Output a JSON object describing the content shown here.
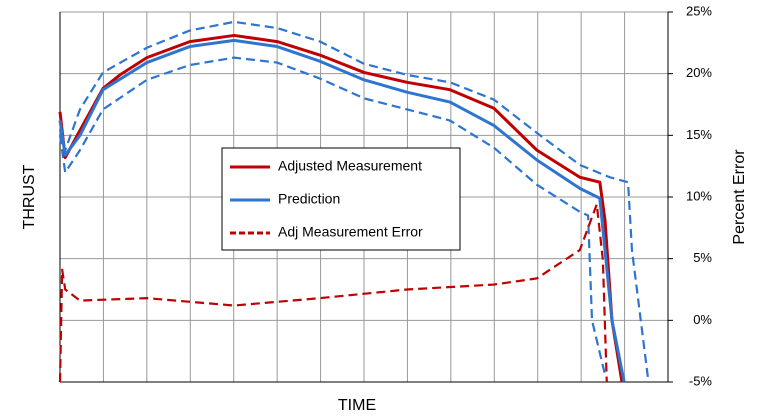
{
  "chart_data": {
    "type": "line",
    "xlabel": "TIME",
    "ylabel": "THRUST",
    "y2label": "Percent Error",
    "xlim": [
      0,
      14
    ],
    "xticks": [
      0,
      1,
      2,
      3,
      4,
      5,
      6,
      7,
      8,
      9,
      10,
      11,
      12,
      13,
      14
    ],
    "ylim": [
      -5,
      25
    ],
    "y2lim": [
      -5,
      25
    ],
    "y2ticks": [
      {
        "value": 25,
        "label": "25%"
      },
      {
        "value": 20,
        "label": "20%"
      },
      {
        "value": 15,
        "label": "15%"
      },
      {
        "value": 10,
        "label": "10%"
      },
      {
        "value": 5,
        "label": "5%"
      },
      {
        "value": 0,
        "label": "0%"
      },
      {
        "value": -5,
        "label": "-5%"
      }
    ],
    "grid": true,
    "legend": "center",
    "series": [
      {
        "name": null,
        "color": "#2e75d0",
        "dash": true,
        "x": [
          0,
          0.12,
          0.46,
          0.99,
          2,
          2.99,
          4.01,
          5,
          5.99,
          7,
          7.99,
          8.98,
          9.99,
          10.98,
          11.97,
          12.66,
          13.08,
          13.17,
          13.54
        ],
        "values": [
          15.4,
          13.8,
          17.1,
          20.1,
          22.1,
          23.5,
          24.2,
          23.7,
          22.6,
          20.8,
          19.9,
          19.3,
          17.9,
          15.2,
          12.6,
          11.6,
          11.2,
          5.7,
          -4.7
        ]
      },
      {
        "name": null,
        "color": "#2e75d0",
        "dash": true,
        "x": [
          0,
          0.12,
          0.46,
          0.99,
          2,
          2.99,
          4.01,
          5,
          5.99,
          7,
          7.99,
          8.98,
          9.99,
          10.98,
          11.97,
          12.16,
          12.25,
          12.55
        ],
        "values": [
          15.0,
          12.0,
          13.8,
          17.1,
          19.5,
          20.7,
          21.3,
          20.9,
          19.6,
          18.0,
          17.1,
          16.2,
          14.0,
          11.0,
          8.8,
          8.5,
          0,
          -4.4
        ]
      },
      {
        "name": "Adjusted Measurement",
        "color": "#c00000",
        "x": [
          0,
          0.12,
          0.46,
          0.99,
          1.38,
          2,
          2.99,
          4.01,
          5,
          5.99,
          7,
          7.99,
          8.98,
          9.99,
          10.98,
          11.97,
          12.43,
          12.55,
          12.71,
          12.94
        ],
        "values": [
          16.9,
          13.2,
          15.4,
          18.8,
          19.9,
          21.3,
          22.6,
          23.1,
          22.6,
          21.5,
          20.1,
          19.3,
          18.7,
          17.2,
          13.8,
          11.6,
          11.2,
          8.1,
          0,
          -5
        ]
      },
      {
        "name": "Prediction",
        "color": "#2e75d0",
        "x": [
          0,
          0.12,
          0.46,
          0.99,
          2,
          2.99,
          4.01,
          5,
          5.99,
          7,
          7.99,
          8.98,
          9.99,
          10.98,
          11.97,
          12.43,
          12.71,
          12.99
        ],
        "values": [
          16.2,
          13.4,
          15.0,
          18.7,
          20.9,
          22.2,
          22.7,
          22.2,
          21.0,
          19.5,
          18.5,
          17.7,
          15.8,
          13.0,
          10.7,
          9.9,
          0,
          -5
        ]
      },
      {
        "name": "Adj Measurement Error",
        "color": "#c00000",
        "dash": true,
        "axis": "y2",
        "x": [
          0,
          0.05,
          0.12,
          0.46,
          2,
          4.01,
          5.99,
          7.99,
          9.99,
          10.98,
          11.97,
          12.36,
          12.5,
          12.59
        ],
        "values": [
          -5,
          4.1,
          2.5,
          1.6,
          1.8,
          1.2,
          1.8,
          2.5,
          2.9,
          3.4,
          5.7,
          9.4,
          4.9,
          -5
        ]
      }
    ]
  }
}
